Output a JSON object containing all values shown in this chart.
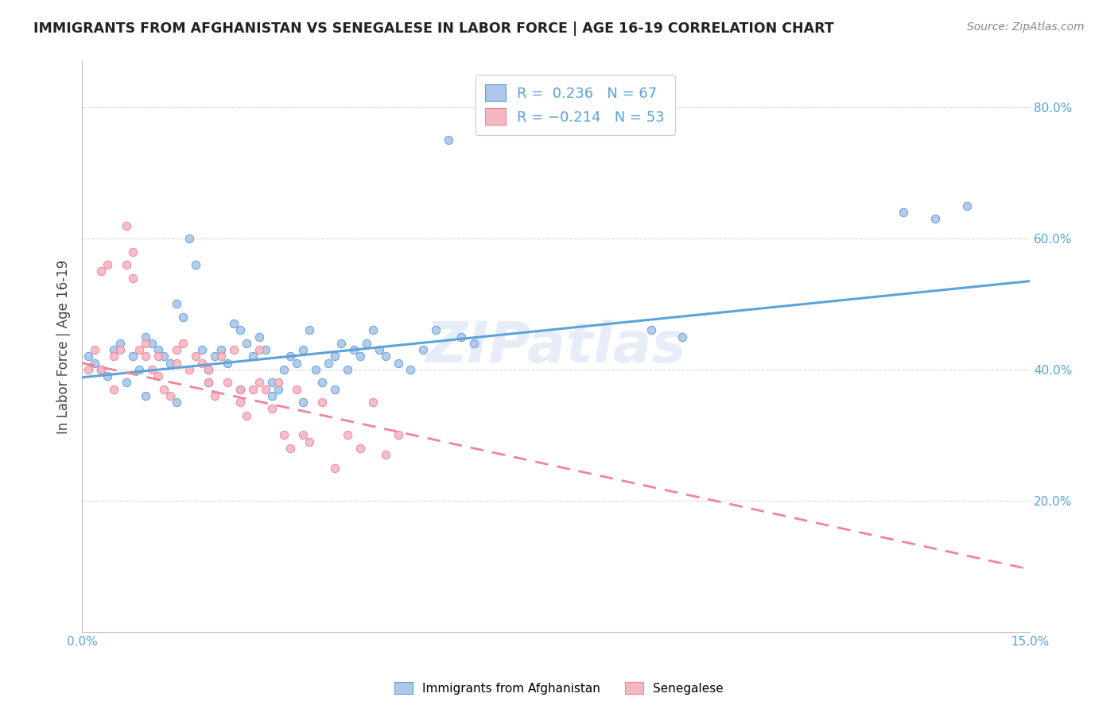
{
  "title": "IMMIGRANTS FROM AFGHANISTAN VS SENEGALESE IN LABOR FORCE | AGE 16-19 CORRELATION CHART",
  "source": "Source: ZipAtlas.com",
  "ylabel": "In Labor Force | Age 16-19",
  "x_min": 0.0,
  "x_max": 0.15,
  "y_min": 0.0,
  "y_max": 0.87,
  "x_ticks": [
    0.0,
    0.025,
    0.05,
    0.075,
    0.1,
    0.125,
    0.15
  ],
  "x_tick_labels": [
    "0.0%",
    "",
    "",
    "",
    "",
    "",
    "15.0%"
  ],
  "y_ticks": [
    0.2,
    0.4,
    0.6,
    0.8
  ],
  "y_tick_labels": [
    "20.0%",
    "40.0%",
    "60.0%",
    "80.0%"
  ],
  "afghanistan_scatter_x": [
    0.001,
    0.002,
    0.003,
    0.004,
    0.005,
    0.006,
    0.007,
    0.008,
    0.009,
    0.01,
    0.011,
    0.012,
    0.013,
    0.014,
    0.015,
    0.016,
    0.017,
    0.018,
    0.019,
    0.02,
    0.021,
    0.022,
    0.023,
    0.024,
    0.025,
    0.026,
    0.027,
    0.028,
    0.029,
    0.03,
    0.031,
    0.032,
    0.033,
    0.034,
    0.035,
    0.036,
    0.037,
    0.038,
    0.039,
    0.04,
    0.041,
    0.042,
    0.043,
    0.044,
    0.045,
    0.046,
    0.047,
    0.048,
    0.05,
    0.052,
    0.054,
    0.056,
    0.058,
    0.06,
    0.062,
    0.09,
    0.095,
    0.13,
    0.135,
    0.14,
    0.01,
    0.015,
    0.02,
    0.025,
    0.03,
    0.035,
    0.04
  ],
  "afghanistan_scatter_y": [
    0.42,
    0.41,
    0.4,
    0.39,
    0.43,
    0.44,
    0.38,
    0.42,
    0.4,
    0.45,
    0.44,
    0.43,
    0.42,
    0.41,
    0.5,
    0.48,
    0.6,
    0.56,
    0.43,
    0.4,
    0.42,
    0.43,
    0.41,
    0.47,
    0.46,
    0.44,
    0.42,
    0.45,
    0.43,
    0.38,
    0.37,
    0.4,
    0.42,
    0.41,
    0.43,
    0.46,
    0.4,
    0.38,
    0.41,
    0.42,
    0.44,
    0.4,
    0.43,
    0.42,
    0.44,
    0.46,
    0.43,
    0.42,
    0.41,
    0.4,
    0.43,
    0.46,
    0.75,
    0.45,
    0.44,
    0.46,
    0.45,
    0.64,
    0.63,
    0.65,
    0.36,
    0.35,
    0.38,
    0.37,
    0.36,
    0.35,
    0.37
  ],
  "senegalese_scatter_x": [
    0.001,
    0.002,
    0.003,
    0.004,
    0.005,
    0.006,
    0.007,
    0.008,
    0.009,
    0.01,
    0.011,
    0.012,
    0.013,
    0.014,
    0.015,
    0.016,
    0.017,
    0.018,
    0.019,
    0.02,
    0.021,
    0.022,
    0.023,
    0.024,
    0.025,
    0.026,
    0.027,
    0.028,
    0.029,
    0.03,
    0.031,
    0.032,
    0.033,
    0.034,
    0.035,
    0.036,
    0.038,
    0.04,
    0.042,
    0.044,
    0.046,
    0.048,
    0.05,
    0.005,
    0.008,
    0.01,
    0.012,
    0.015,
    0.003,
    0.007,
    0.02,
    0.025,
    0.028
  ],
  "senegalese_scatter_y": [
    0.4,
    0.43,
    0.55,
    0.56,
    0.42,
    0.43,
    0.62,
    0.58,
    0.43,
    0.42,
    0.4,
    0.39,
    0.37,
    0.36,
    0.43,
    0.44,
    0.4,
    0.42,
    0.41,
    0.38,
    0.36,
    0.42,
    0.38,
    0.43,
    0.35,
    0.33,
    0.37,
    0.43,
    0.37,
    0.34,
    0.38,
    0.3,
    0.28,
    0.37,
    0.3,
    0.29,
    0.35,
    0.25,
    0.3,
    0.28,
    0.35,
    0.27,
    0.3,
    0.37,
    0.54,
    0.44,
    0.42,
    0.41,
    0.4,
    0.56,
    0.4,
    0.37,
    0.38
  ],
  "afghanistan_line_x": [
    0.0,
    0.15
  ],
  "afghanistan_line_y": [
    0.388,
    0.535
  ],
  "senegalese_line_x": [
    0.0,
    0.15
  ],
  "senegalese_line_y": [
    0.41,
    0.095
  ],
  "afghanistan_color": "#5ba3d9",
  "senegalese_color": "#f4829a",
  "afghanistan_fill": "#aec6e8",
  "senegalese_fill": "#f4b8c1",
  "watermark": "ZIPatlas",
  "background_color": "#ffffff",
  "grid_color": "#d8d8d8"
}
